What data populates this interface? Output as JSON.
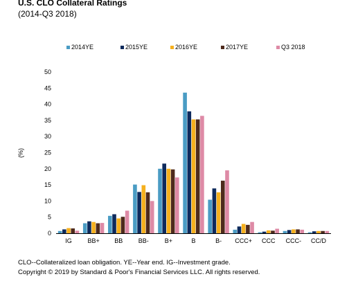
{
  "title": "U.S. CLO Collateral Ratings",
  "subtitle": "(2014-Q3 2018)",
  "footnote": "CLO--Collateralized loan obligation. YE--Year end. IG--Investment grade.",
  "copyright": "Copyright © 2019 by Standard & Poor's Financial Services LLC. All rights reserved.",
  "chart_data": {
    "type": "bar",
    "title": "U.S. CLO Collateral Ratings",
    "subtitle": "(2014-Q3 2018)",
    "xlabel": "",
    "ylabel": "(%)",
    "ylim": [
      0,
      50
    ],
    "yticks": [
      0,
      5,
      10,
      15,
      20,
      25,
      30,
      35,
      40,
      45,
      50
    ],
    "grid": false,
    "legend_position": "top",
    "categories": [
      "IG",
      "BB+",
      "BB",
      "BB-",
      "B+",
      "B",
      "B-",
      "CCC+",
      "CCC",
      "CCC-",
      "CC/D"
    ],
    "series": [
      {
        "name": "2014YE",
        "color": "#4a9cc4",
        "values": [
          0.7,
          3.1,
          5.4,
          15.1,
          20.0,
          43.6,
          10.4,
          1.1,
          0.3,
          0.7,
          0.3
        ]
      },
      {
        "name": "2015YE",
        "color": "#0e2a5c",
        "values": [
          1.2,
          3.7,
          5.9,
          12.8,
          21.6,
          37.8,
          13.9,
          2.1,
          0.5,
          1.0,
          0.6
        ]
      },
      {
        "name": "2016YE",
        "color": "#f5b01e",
        "values": [
          1.6,
          3.5,
          4.6,
          14.9,
          20.0,
          35.3,
          12.7,
          2.9,
          0.9,
          1.2,
          0.7
        ]
      },
      {
        "name": "2017YE",
        "color": "#4e2a1c",
        "values": [
          1.5,
          3.1,
          5.1,
          12.7,
          19.8,
          35.3,
          16.3,
          2.6,
          0.8,
          1.2,
          0.7
        ]
      },
      {
        "name": "Q3 2018",
        "color": "#de8aa6",
        "values": [
          0.8,
          3.2,
          7.0,
          10.0,
          17.3,
          36.4,
          19.5,
          3.5,
          1.4,
          1.1,
          0.7
        ]
      }
    ]
  }
}
